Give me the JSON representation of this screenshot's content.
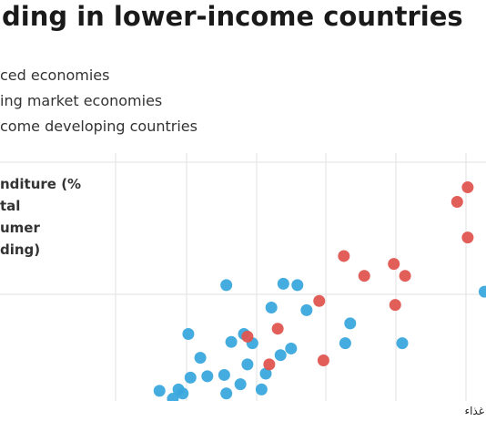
{
  "chart_data": {
    "type": "scatter",
    "title": "ding in lower-income countries",
    "legend": [
      "ced economies",
      "ing market economies",
      "come developing countries"
    ],
    "y_label": [
      "nditure (%",
      "tal",
      "umer",
      "ding)"
    ],
    "xlim": [
      0,
      6.26
    ],
    "ylim": [
      0,
      2
    ],
    "series": [
      {
        "color": "#3aa8dc",
        "x": [
          2.57,
          3.38,
          3.58,
          3.21,
          3.71,
          4.33,
          2.03,
          2.82,
          2.64,
          2.2,
          2.94,
          3.49,
          3.34,
          4.26,
          5.07,
          2.87,
          2.06,
          2.3,
          2.54,
          3.13,
          1.62,
          1.89,
          1.95,
          2.77,
          3.07,
          2.57,
          1.81,
          6.24
        ],
        "values": [
          1.07,
          1.08,
          1.07,
          0.9,
          0.88,
          0.78,
          0.7,
          0.7,
          0.64,
          0.52,
          0.63,
          0.59,
          0.54,
          0.63,
          0.63,
          0.47,
          0.37,
          0.38,
          0.39,
          0.4,
          0.27,
          0.28,
          0.25,
          0.32,
          0.28,
          0.25,
          0.21,
          1.02
        ]
      },
      {
        "color": "#e05550",
        "x": [
          6.0,
          5.85,
          6.0,
          4.24,
          4.53,
          4.95,
          5.11,
          3.89,
          4.97,
          3.3,
          2.87,
          3.18,
          3.95
        ],
        "values": [
          1.81,
          1.7,
          1.43,
          1.29,
          1.14,
          1.23,
          1.14,
          0.95,
          0.92,
          0.74,
          0.68,
          0.47,
          0.5
        ]
      }
    ]
  },
  "footer": {
    "text": "غذاء"
  }
}
